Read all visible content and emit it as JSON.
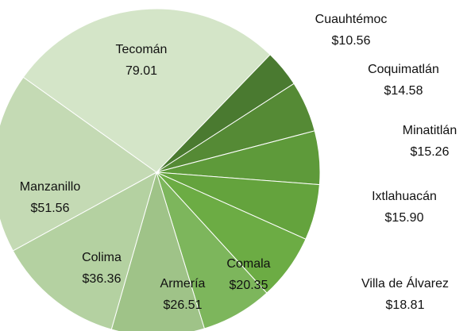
{
  "chart_data": {
    "type": "pie",
    "categories": [
      "Cuauhtémoc",
      "Coquimatlán",
      "Minatitlán",
      "Ixtlahuacán",
      "Villa de Álvarez",
      "Comala",
      "Armería",
      "Colima",
      "Manzanillo",
      "Tecomán"
    ],
    "values": [
      10.56,
      14.58,
      15.26,
      15.9,
      18.81,
      20.35,
      26.51,
      36.36,
      51.56,
      79.01
    ],
    "value_labels": [
      "$10.56",
      "$14.58",
      "$15.26",
      "$15.90",
      "$18.81",
      "$20.35",
      "$26.51",
      "$36.36",
      "$51.56",
      "79.01"
    ],
    "colors": [
      "#4a7a30",
      "#558a35",
      "#5e9a3a",
      "#64a33d",
      "#6cac44",
      "#7db65c",
      "#9fc388",
      "#b4d1a1",
      "#c4dab4",
      "#d4e5c8"
    ]
  }
}
